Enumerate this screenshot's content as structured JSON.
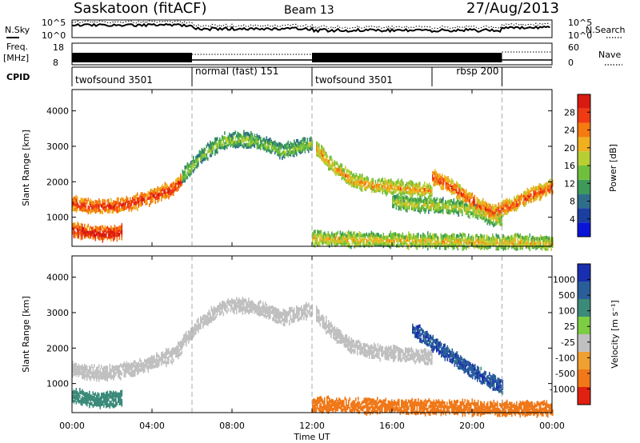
{
  "header": {
    "station": "Saskatoon (fitACF)",
    "beam": "Beam 13",
    "date": "27/Aug/2013"
  },
  "noise_panel": {
    "left_label": "N.Sky",
    "right_label": "N.Search",
    "left_ticks": [
      "10^5",
      "10^0"
    ],
    "right_ticks": [
      "10^5",
      "10^0"
    ]
  },
  "freq_panel": {
    "left_label_1": "Freq.",
    "left_label_2": "[MHz]",
    "left_ticks": [
      "18",
      "8"
    ],
    "right_label": "Nave",
    "right_ticks": [
      "60",
      "0"
    ]
  },
  "cpid": {
    "label": "CPID",
    "segments": [
      {
        "name": "twofsound 3501",
        "start_hour": 0,
        "end_hour": 6
      },
      {
        "name": "normal (fast) 151",
        "start_hour": 6,
        "end_hour": 12
      },
      {
        "name": "twofsound 3501",
        "start_hour": 12,
        "end_hour": 18
      },
      {
        "name": "rbsp 200",
        "start_hour": 18,
        "end_hour": 21.5
      }
    ]
  },
  "x_axis": {
    "label": "Time UT",
    "ticks": [
      "00:00",
      "04:00",
      "08:00",
      "12:00",
      "16:00",
      "20:00",
      "00:00"
    ]
  },
  "power_panel": {
    "ylabel": "Slant Range [km]",
    "yticks": [
      "4000",
      "3000",
      "2000",
      "1000"
    ],
    "colorbar_label": "Power [dB]",
    "colorbar_ticks": [
      "28",
      "24",
      "20",
      "16",
      "12",
      "8",
      "4"
    ],
    "colors": [
      "#0a14d8",
      "#1a3fa0",
      "#2e6e8a",
      "#3d9a5a",
      "#6fbf3c",
      "#b8cf33",
      "#f0b020",
      "#f57a10",
      "#ef3a14",
      "#d81a10"
    ]
  },
  "velocity_panel": {
    "ylabel": "Slant Range [km]",
    "yticks": [
      "4000",
      "3000",
      "2000",
      "1000"
    ],
    "colorbar_label": "Velocity [m s⁻¹]",
    "colorbar_ticks": [
      "1000",
      "500",
      "100",
      "25",
      "-25",
      "-100",
      "-500",
      "-1000"
    ],
    "colors": [
      "#1a2fb0",
      "#2a5e9a",
      "#3b8a7a",
      "#7ccd44",
      "#c0c0c0",
      "#f0a030",
      "#f07818",
      "#e02010"
    ]
  },
  "chart_data": {
    "type": "heatmap",
    "x_range_hours": [
      0,
      24
    ],
    "y_range_km": [
      180,
      4600
    ],
    "dashed_vlines_hours": [
      6,
      12,
      21.5
    ],
    "power_bands": [
      {
        "t": [
          0,
          1,
          2,
          3,
          4,
          5,
          5.5
        ],
        "r": [
          1450,
          1350,
          1350,
          1450,
          1650,
          1850,
          2100
        ],
        "dB": 22
      },
      {
        "t": [
          0,
          1,
          2,
          2.5
        ],
        "r": [
          700,
          600,
          600,
          650
        ],
        "dB": 24
      },
      {
        "t": [
          5.5,
          6.5,
          7.5,
          8.5,
          9.5,
          10.5,
          11.5,
          12
        ],
        "r": [
          2200,
          2800,
          3200,
          3250,
          3150,
          2900,
          3050,
          3150
        ],
        "dB": 10
      },
      {
        "t": [
          12.2,
          13,
          14,
          15,
          16,
          17,
          18
        ],
        "r": [
          3000,
          2500,
          2100,
          1950,
          1900,
          1850,
          1800
        ],
        "dB": 16
      },
      {
        "t": [
          16,
          17,
          18,
          19,
          20,
          21,
          21.5
        ],
        "r": [
          1500,
          1400,
          1400,
          1350,
          1250,
          1050,
          950
        ],
        "dB": 12
      },
      {
        "t": [
          18,
          19,
          20,
          21,
          22,
          23,
          24
        ],
        "r": [
          2200,
          1900,
          1500,
          1200,
          1400,
          1700,
          1900
        ],
        "dB": 20
      },
      {
        "t": [
          12,
          14,
          16,
          18,
          20,
          22,
          24
        ],
        "r": [
          450,
          420,
          400,
          380,
          360,
          340,
          330
        ],
        "dB": 14
      }
    ],
    "velocity_bands": [
      {
        "t": [
          0,
          1,
          2,
          3,
          4,
          5,
          5.5
        ],
        "r": [
          1450,
          1350,
          1350,
          1450,
          1650,
          1850,
          2100
        ],
        "vel": 0
      },
      {
        "t": [
          0,
          1,
          2,
          2.5
        ],
        "r": [
          700,
          600,
          600,
          650
        ],
        "vel": 120
      },
      {
        "t": [
          5.5,
          6.5,
          7.5,
          8.5,
          9.5,
          10.5,
          11.5,
          12
        ],
        "r": [
          2200,
          2800,
          3200,
          3250,
          3150,
          2900,
          3050,
          3150
        ],
        "vel": 0
      },
      {
        "t": [
          12.2,
          13,
          14,
          15,
          16,
          17,
          18
        ],
        "r": [
          3000,
          2500,
          2100,
          1950,
          1900,
          1850,
          1800
        ],
        "vel": 0
      },
      {
        "t": [
          17,
          18,
          19,
          20,
          21,
          21.5
        ],
        "r": [
          2600,
          2200,
          1800,
          1400,
          1100,
          950
        ],
        "vel": 600
      },
      {
        "t": [
          12,
          14,
          16,
          18,
          20,
          22,
          24
        ],
        "r": [
          450,
          420,
          400,
          380,
          360,
          340,
          330
        ],
        "vel": -150
      }
    ]
  }
}
